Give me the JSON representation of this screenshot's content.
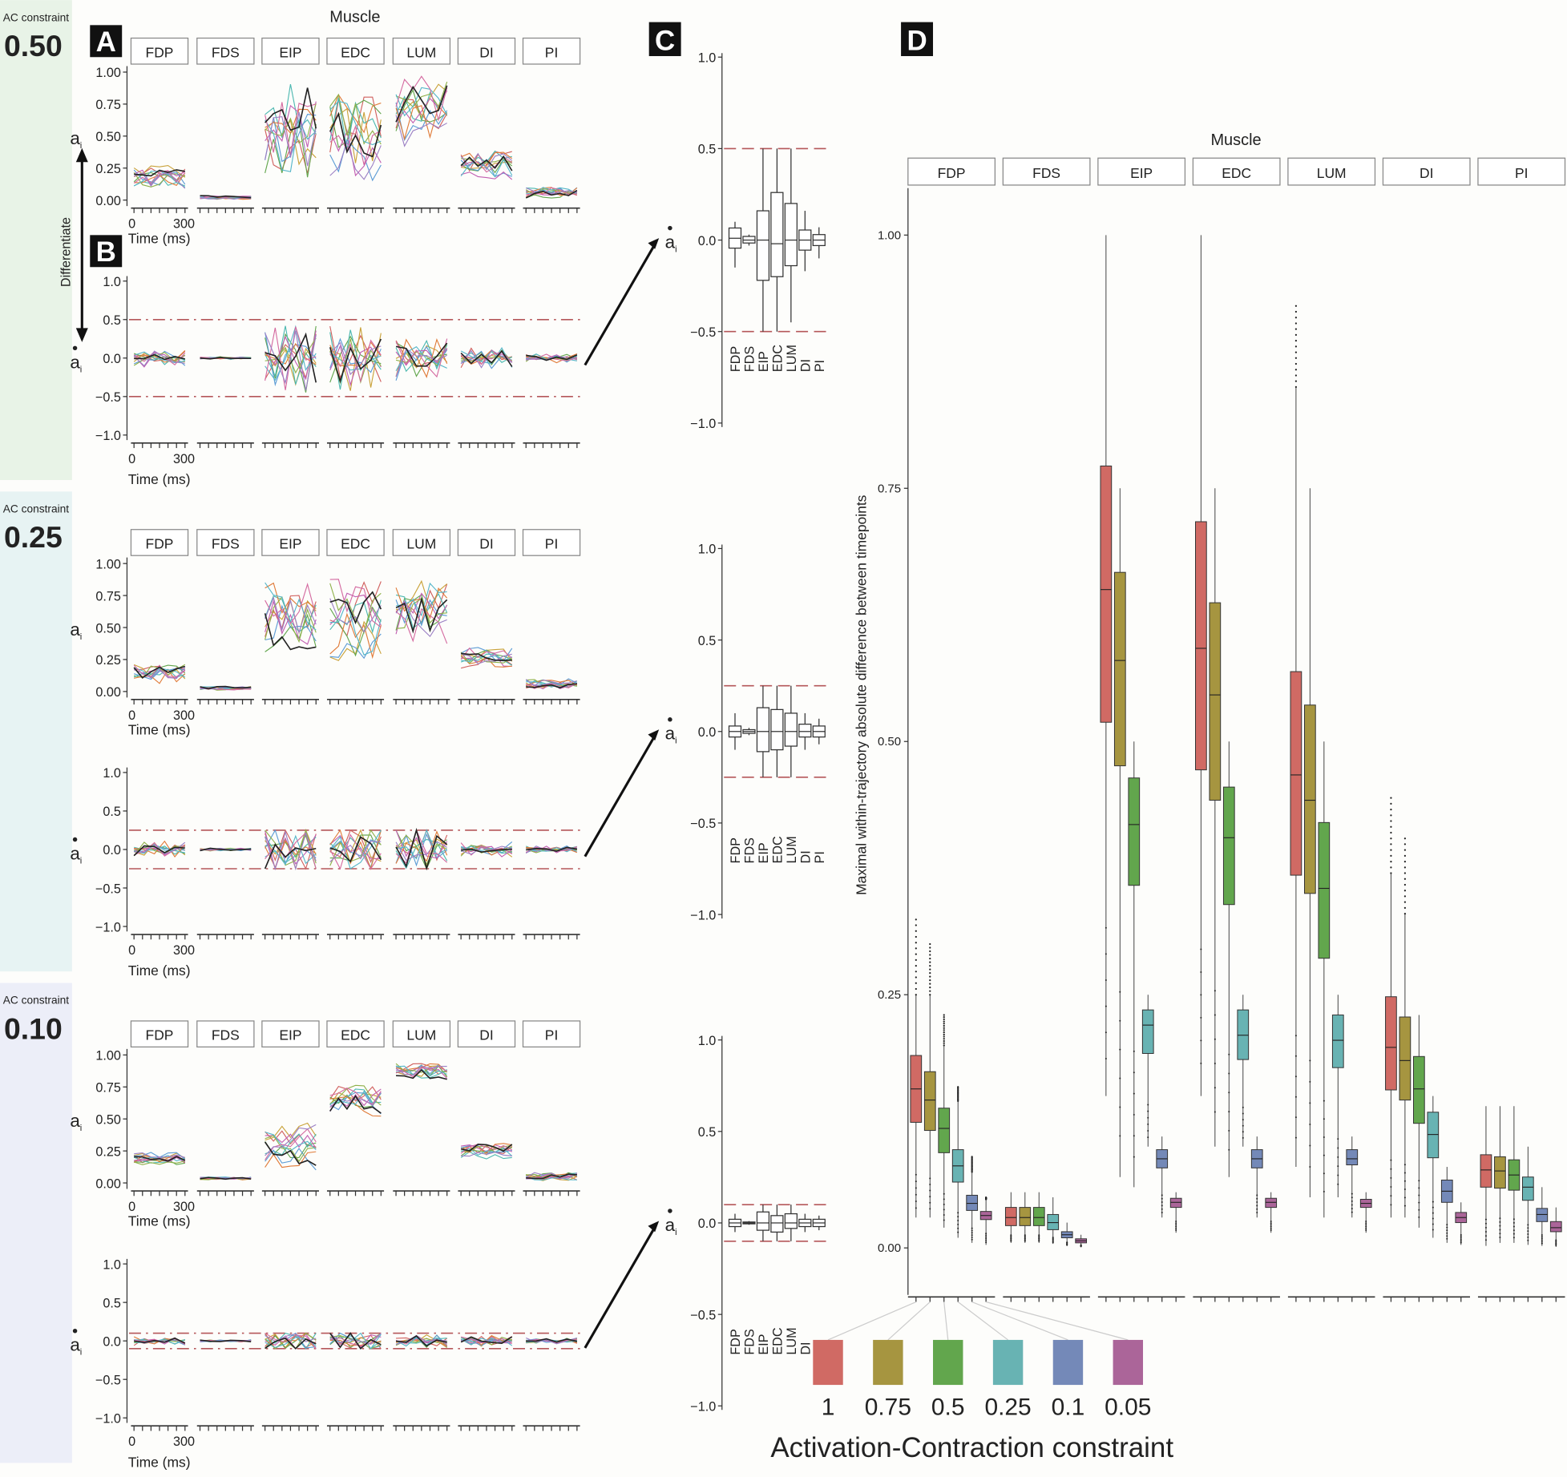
{
  "chart_data": {
    "type": "composite",
    "muscle_title": "Muscle",
    "muscles": [
      "FDP",
      "FDS",
      "EIP",
      "EDC",
      "LUM",
      "DI",
      "PI"
    ],
    "row_caption": "AC constraint",
    "panel_letters": [
      "A",
      "B",
      "C",
      "D"
    ],
    "differentiate_label": "Differentiate",
    "a_label": "a",
    "a_sub": "i",
    "time_label": "Time (ms)",
    "time_ticks": [
      "0",
      "300"
    ],
    "a_ticks": [
      1.0,
      0.75,
      0.5,
      0.25,
      0.0
    ],
    "a_tick_labels": [
      "1.00",
      "0.75",
      "0.50",
      "0.25",
      "0.00"
    ],
    "b_ticks": [
      1.0,
      0.5,
      0.0,
      -0.5,
      -1.0
    ],
    "b_tick_labels": [
      "1.0",
      "0.5",
      "0.0",
      "−0.5",
      "−1.0"
    ],
    "rows": [
      {
        "constraint": "0.50",
        "limit": 0.5,
        "band_color": "#e8f3e7",
        "panelA_traces": {
          "type": "line",
          "n_traces": 12,
          "n_timepoints": 7,
          "mean": [
            0.17,
            0.02,
            0.55,
            0.5,
            0.7,
            0.27,
            0.06
          ],
          "spread": [
            0.08,
            0.012,
            0.3,
            0.3,
            0.22,
            0.1,
            0.04
          ]
        },
        "panelC_box": {
          "type": "box",
          "q1": [
            -0.044,
            -0.016,
            -0.22,
            -0.2,
            -0.14,
            -0.055,
            -0.03
          ],
          "median": [
            0.01,
            0.0,
            0.0,
            -0.02,
            0.0,
            0.0,
            0.0
          ],
          "q3": [
            0.066,
            0.02,
            0.16,
            0.26,
            0.2,
            0.055,
            0.03
          ],
          "lo": [
            -0.15,
            -0.03,
            -0.5,
            -0.5,
            -0.45,
            -0.17,
            -0.1
          ],
          "hi": [
            0.1,
            0.03,
            0.5,
            0.5,
            0.5,
            0.16,
            0.07
          ]
        }
      },
      {
        "constraint": "0.25",
        "limit": 0.25,
        "band_color": "#e7f3f3",
        "panelA_traces": {
          "type": "line",
          "n_traces": 12,
          "n_timepoints": 7,
          "mean": [
            0.15,
            0.025,
            0.55,
            0.55,
            0.65,
            0.27,
            0.06
          ],
          "spread": [
            0.07,
            0.012,
            0.28,
            0.28,
            0.22,
            0.07,
            0.035
          ]
        },
        "panelC_box": {
          "type": "box",
          "q1": [
            -0.03,
            -0.01,
            -0.11,
            -0.1,
            -0.08,
            -0.03,
            -0.03
          ],
          "median": [
            0.0,
            0.0,
            0.0,
            0.0,
            0.0,
            0.0,
            0.0
          ],
          "q3": [
            0.03,
            0.01,
            0.13,
            0.12,
            0.1,
            0.04,
            0.03
          ],
          "lo": [
            -0.1,
            -0.02,
            -0.25,
            -0.25,
            -0.25,
            -0.1,
            -0.07
          ],
          "hi": [
            0.1,
            0.02,
            0.25,
            0.25,
            0.25,
            0.1,
            0.07
          ]
        }
      },
      {
        "constraint": "0.10",
        "limit": 0.1,
        "band_color": "#eceef8",
        "panelA_traces": {
          "type": "line",
          "n_traces": 12,
          "n_timepoints": 7,
          "mean": [
            0.19,
            0.035,
            0.3,
            0.65,
            0.87,
            0.25,
            0.05
          ],
          "spread": [
            0.04,
            0.01,
            0.16,
            0.12,
            0.06,
            0.05,
            0.03
          ]
        },
        "panelC_box": {
          "type": "box",
          "q1": [
            -0.02,
            -0.005,
            -0.04,
            -0.05,
            -0.03,
            -0.02,
            -0.02
          ],
          "median": [
            0.0,
            0.0,
            0.0,
            0.0,
            0.0,
            0.0,
            0.0
          ],
          "q3": [
            0.02,
            0.005,
            0.06,
            0.04,
            0.05,
            0.02,
            0.02
          ],
          "lo": [
            -0.05,
            -0.01,
            -0.1,
            -0.1,
            -0.1,
            -0.05,
            -0.04
          ],
          "hi": [
            0.05,
            0.01,
            0.1,
            0.1,
            0.1,
            0.05,
            0.04
          ]
        }
      }
    ],
    "panelD": {
      "type": "box",
      "title": "Muscle",
      "ylabel": "Maximal within-trajectory absolute difference between timepoints",
      "xlabel": "Activation-Contraction constraint",
      "ylim": [
        0,
        1.0
      ],
      "y_ticks": [
        1.0,
        0.75,
        0.5,
        0.25,
        0.0
      ],
      "y_tick_labels": [
        "1.00",
        "0.75",
        "0.50",
        "0.25",
        "0.00"
      ],
      "constraints": [
        "1",
        "0.75",
        "0.5",
        "0.25",
        "0.1",
        "0.05"
      ],
      "colors": [
        "#d06a64",
        "#a69540",
        "#62a64d",
        "#68b3b3",
        "#7489b8",
        "#ab6599"
      ],
      "boxes": {
        "FDP": {
          "q1": [
            0.124,
            0.116,
            0.094,
            0.065,
            0.037,
            0.028
          ],
          "median": [
            0.157,
            0.146,
            0.118,
            0.081,
            0.044,
            0.032
          ],
          "q3": [
            0.19,
            0.174,
            0.138,
            0.097,
            0.052,
            0.036
          ],
          "lo": [
            0.03,
            0.03,
            0.02,
            0.01,
            0.005,
            0.003
          ],
          "hi": [
            0.25,
            0.25,
            0.2,
            0.145,
            0.075,
            0.048
          ],
          "outlier_max": [
            0.33,
            0.3,
            0.23,
            0.16,
            0.09,
            0.05
          ]
        },
        "FDS": {
          "q1": [
            0.022,
            0.022,
            0.022,
            0.018,
            0.01,
            0.005
          ],
          "median": [
            0.03,
            0.03,
            0.03,
            0.025,
            0.013,
            0.007
          ],
          "q3": [
            0.04,
            0.04,
            0.04,
            0.033,
            0.016,
            0.009
          ],
          "lo": [
            0.005,
            0.005,
            0.005,
            0.004,
            0.002,
            0.001
          ],
          "hi": [
            0.055,
            0.055,
            0.055,
            0.05,
            0.025,
            0.013
          ],
          "outlier_max": [
            0.055,
            0.055,
            0.055,
            0.05,
            0.025,
            0.013
          ]
        },
        "EIP": {
          "q1": [
            0.519,
            0.476,
            0.358,
            0.192,
            0.079,
            0.04
          ],
          "median": [
            0.65,
            0.58,
            0.418,
            0.22,
            0.088,
            0.045
          ],
          "q3": [
            0.772,
            0.667,
            0.464,
            0.235,
            0.097,
            0.049
          ],
          "lo": [
            0.15,
            0.07,
            0.06,
            0.1,
            0.03,
            0.015
          ],
          "hi": [
            1.0,
            0.75,
            0.5,
            0.25,
            0.11,
            0.055
          ],
          "outlier_max": [
            1.0,
            0.75,
            0.5,
            0.25,
            0.11,
            0.055
          ]
        },
        "EDC": {
          "q1": [
            0.472,
            0.442,
            0.339,
            0.186,
            0.079,
            0.04
          ],
          "median": [
            0.592,
            0.546,
            0.405,
            0.21,
            0.088,
            0.045
          ],
          "q3": [
            0.717,
            0.637,
            0.455,
            0.235,
            0.097,
            0.049
          ],
          "lo": [
            0.15,
            0.1,
            0.07,
            0.1,
            0.03,
            0.015
          ],
          "hi": [
            1.0,
            0.75,
            0.5,
            0.25,
            0.11,
            0.055
          ],
          "outlier_max": [
            1.0,
            0.75,
            0.5,
            0.25,
            0.11,
            0.055
          ]
        },
        "LUM": {
          "q1": [
            0.368,
            0.35,
            0.286,
            0.178,
            0.082,
            0.04
          ],
          "median": [
            0.467,
            0.442,
            0.355,
            0.205,
            0.088,
            0.044
          ],
          "q3": [
            0.569,
            0.536,
            0.42,
            0.23,
            0.097,
            0.048
          ],
          "lo": [
            0.08,
            0.05,
            0.03,
            0.05,
            0.03,
            0.015
          ],
          "hi": [
            0.85,
            0.75,
            0.5,
            0.25,
            0.11,
            0.055
          ],
          "outlier_max": [
            0.93,
            0.75,
            0.5,
            0.25,
            0.11,
            0.055
          ]
        },
        "DI": {
          "q1": [
            0.156,
            0.146,
            0.123,
            0.089,
            0.045,
            0.025
          ],
          "median": [
            0.198,
            0.185,
            0.157,
            0.112,
            0.056,
            0.03
          ],
          "q3": [
            0.248,
            0.228,
            0.189,
            0.134,
            0.067,
            0.035
          ],
          "lo": [
            0.03,
            0.03,
            0.02,
            0.01,
            0.005,
            0.003
          ],
          "hi": [
            0.37,
            0.33,
            0.23,
            0.15,
            0.08,
            0.045
          ],
          "outlier_max": [
            0.45,
            0.41,
            0.23,
            0.15,
            0.08,
            0.045
          ]
        },
        "PI": {
          "q1": [
            0.06,
            0.059,
            0.057,
            0.047,
            0.026,
            0.016
          ],
          "median": [
            0.077,
            0.076,
            0.072,
            0.06,
            0.033,
            0.02
          ],
          "q3": [
            0.092,
            0.09,
            0.087,
            0.07,
            0.039,
            0.026
          ],
          "lo": [
            0.002,
            0.005,
            0.005,
            0.003,
            0.002,
            0.001
          ],
          "hi": [
            0.14,
            0.14,
            0.14,
            0.1,
            0.06,
            0.04
          ],
          "outlier_max": [
            0.14,
            0.14,
            0.14,
            0.1,
            0.06,
            0.04
          ]
        }
      }
    }
  }
}
